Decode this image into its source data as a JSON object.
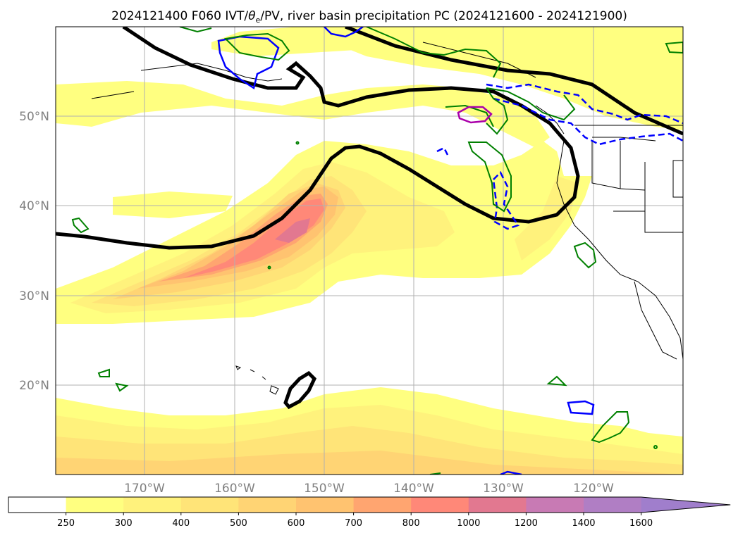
{
  "title": "2024121400 F060 IVT/θe/PV, river basin precipitation PC (2024121600 - 2024121900)",
  "title_parts": {
    "prefix": "2024121400 F060 IVT/",
    "theta": "θ",
    "theta_sub": "e",
    "suffix": "/PV, river basin precipitation PC (2024121600 - 2024121900)"
  },
  "map": {
    "lon_range": [
      -180,
      -110
    ],
    "lat_range": [
      10,
      60
    ],
    "lon_ticks": [
      {
        "value": -170,
        "label": "170°W"
      },
      {
        "value": -160,
        "label": "160°W"
      },
      {
        "value": -150,
        "label": "150°W"
      },
      {
        "value": -140,
        "label": "140°W"
      },
      {
        "value": -130,
        "label": "130°W"
      },
      {
        "value": -120,
        "label": "120°W"
      }
    ],
    "lat_ticks": [
      {
        "value": 50,
        "label": "50°N"
      },
      {
        "value": 40,
        "label": "40°N"
      },
      {
        "value": 30,
        "label": "30°N"
      },
      {
        "value": 20,
        "label": "20°N"
      }
    ],
    "grid": true
  },
  "colorbar": {
    "levels": [
      "250",
      "300",
      "400",
      "500",
      "600",
      "700",
      "800",
      "1000",
      "1200",
      "1400",
      "1600"
    ],
    "colors": [
      "#ffffff",
      "#ffff80",
      "#fff27c",
      "#ffe478",
      "#ffd474",
      "#ffc370",
      "#ffa570",
      "#ff8878",
      "#e27890",
      "#c87ab4",
      "#b07ec4",
      "#a07ecc"
    ],
    "extend": "max"
  },
  "colors": {
    "theta_e_contour": "#000000",
    "pv_positive": "#008000",
    "pv_negative": "#0000ff",
    "precip": "#aa00aa"
  }
}
